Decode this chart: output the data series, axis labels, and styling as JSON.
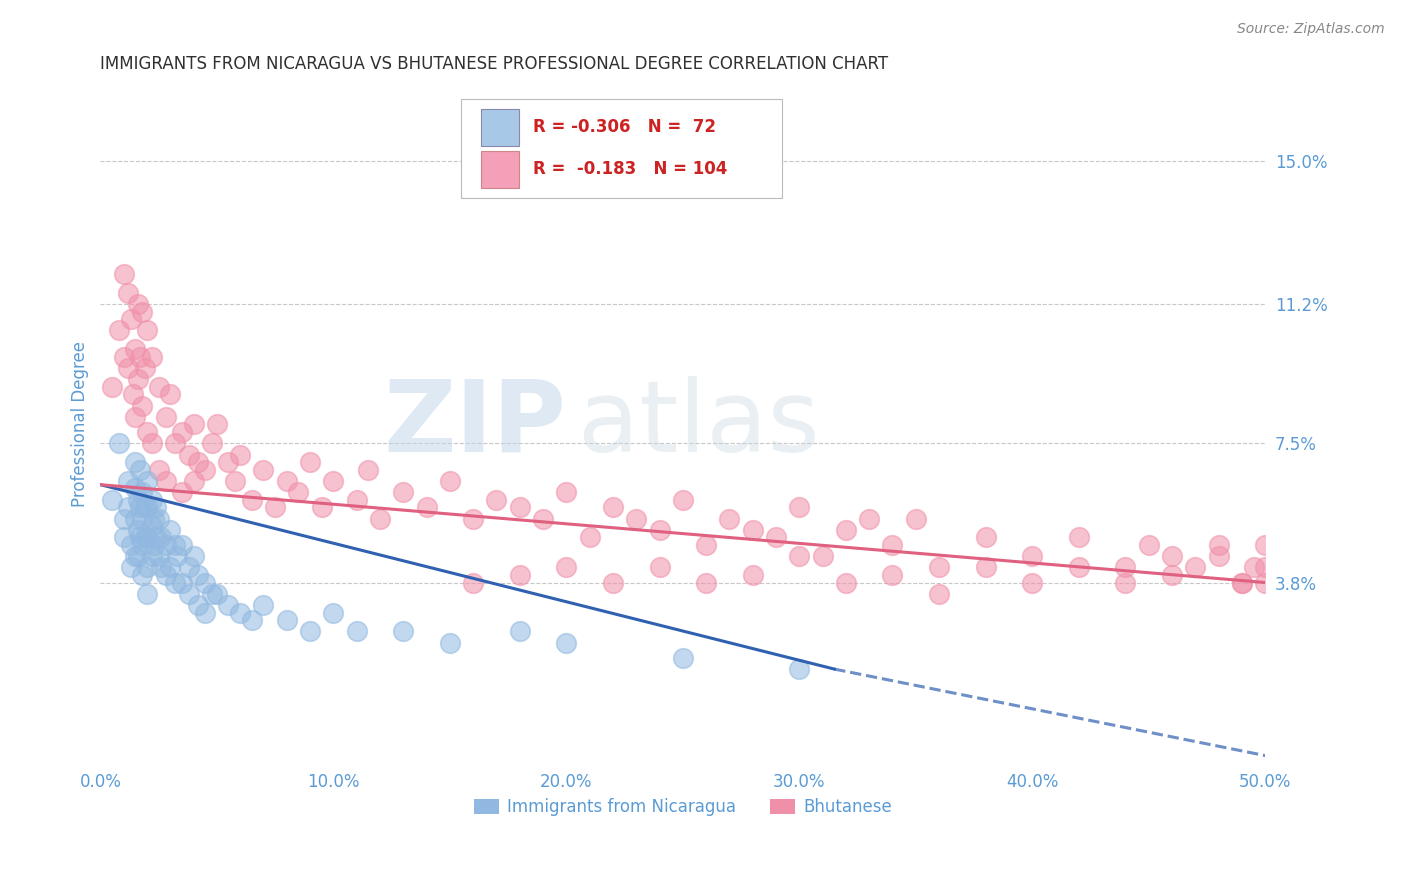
{
  "title": "IMMIGRANTS FROM NICARAGUA VS BHUTANESE PROFESSIONAL DEGREE CORRELATION CHART",
  "source": "Source: ZipAtlas.com",
  "ylabel": "Professional Degree",
  "xlim": [
    0,
    0.5
  ],
  "ylim": [
    -0.01,
    0.17
  ],
  "yticks": [
    0.038,
    0.075,
    0.112,
    0.15
  ],
  "ytick_labels": [
    "3.8%",
    "7.5%",
    "11.2%",
    "15.0%"
  ],
  "xticks": [
    0.0,
    0.1,
    0.2,
    0.3,
    0.4,
    0.5
  ],
  "xtick_labels": [
    "0.0%",
    "10.0%",
    "20.0%",
    "30.0%",
    "40.0%",
    "50.0%"
  ],
  "legend_entries": [
    {
      "label": "Immigrants from Nicaragua",
      "R": "-0.306",
      "N": " 72",
      "color": "#a8c8e8"
    },
    {
      "label": "Bhutanese",
      "R": " -0.183",
      "N": "104",
      "color": "#f4a0b8"
    }
  ],
  "nicaragua_color": "#90b8e0",
  "bhutanese_color": "#f090a8",
  "nicaragua_line_color": "#3060b0",
  "bhutanese_line_color": "#e06080",
  "watermark_zip": "ZIP",
  "watermark_atlas": "atlas",
  "title_color": "#303030",
  "tick_label_color": "#5b9bd5",
  "background_color": "#ffffff",
  "grid_color": "#c8c8c8",
  "nicaragua_scatter_x": [
    0.005,
    0.008,
    0.01,
    0.01,
    0.012,
    0.012,
    0.013,
    0.013,
    0.015,
    0.015,
    0.015,
    0.015,
    0.016,
    0.016,
    0.016,
    0.017,
    0.017,
    0.017,
    0.018,
    0.018,
    0.018,
    0.018,
    0.019,
    0.019,
    0.02,
    0.02,
    0.02,
    0.02,
    0.02,
    0.022,
    0.022,
    0.022,
    0.023,
    0.023,
    0.024,
    0.024,
    0.025,
    0.025,
    0.026,
    0.026,
    0.028,
    0.028,
    0.03,
    0.03,
    0.032,
    0.032,
    0.033,
    0.035,
    0.035,
    0.038,
    0.038,
    0.04,
    0.042,
    0.042,
    0.045,
    0.045,
    0.048,
    0.05,
    0.055,
    0.06,
    0.065,
    0.07,
    0.08,
    0.09,
    0.1,
    0.11,
    0.13,
    0.15,
    0.18,
    0.2,
    0.25,
    0.3
  ],
  "nicaragua_scatter_y": [
    0.06,
    0.075,
    0.055,
    0.05,
    0.065,
    0.058,
    0.048,
    0.042,
    0.07,
    0.063,
    0.055,
    0.045,
    0.06,
    0.052,
    0.045,
    0.068,
    0.058,
    0.05,
    0.062,
    0.055,
    0.048,
    0.04,
    0.058,
    0.05,
    0.065,
    0.058,
    0.05,
    0.042,
    0.035,
    0.06,
    0.053,
    0.045,
    0.055,
    0.048,
    0.058,
    0.05,
    0.055,
    0.045,
    0.05,
    0.042,
    0.048,
    0.04,
    0.052,
    0.042,
    0.048,
    0.038,
    0.045,
    0.048,
    0.038,
    0.042,
    0.035,
    0.045,
    0.04,
    0.032,
    0.038,
    0.03,
    0.035,
    0.035,
    0.032,
    0.03,
    0.028,
    0.032,
    0.028,
    0.025,
    0.03,
    0.025,
    0.025,
    0.022,
    0.025,
    0.022,
    0.018,
    0.015
  ],
  "bhutanese_scatter_x": [
    0.005,
    0.008,
    0.01,
    0.01,
    0.012,
    0.012,
    0.013,
    0.014,
    0.015,
    0.015,
    0.016,
    0.016,
    0.017,
    0.018,
    0.018,
    0.019,
    0.02,
    0.02,
    0.022,
    0.022,
    0.025,
    0.025,
    0.028,
    0.028,
    0.03,
    0.032,
    0.035,
    0.035,
    0.038,
    0.04,
    0.04,
    0.042,
    0.045,
    0.048,
    0.05,
    0.055,
    0.058,
    0.06,
    0.065,
    0.07,
    0.075,
    0.08,
    0.085,
    0.09,
    0.095,
    0.1,
    0.11,
    0.115,
    0.12,
    0.13,
    0.14,
    0.15,
    0.16,
    0.17,
    0.18,
    0.19,
    0.2,
    0.21,
    0.22,
    0.23,
    0.24,
    0.25,
    0.26,
    0.27,
    0.28,
    0.29,
    0.3,
    0.31,
    0.32,
    0.33,
    0.34,
    0.35,
    0.36,
    0.38,
    0.4,
    0.42,
    0.44,
    0.45,
    0.46,
    0.47,
    0.48,
    0.49,
    0.495,
    0.5,
    0.5,
    0.5,
    0.49,
    0.48,
    0.46,
    0.44,
    0.42,
    0.4,
    0.38,
    0.36,
    0.34,
    0.32,
    0.3,
    0.28,
    0.26,
    0.24,
    0.22,
    0.2,
    0.18,
    0.16
  ],
  "bhutanese_scatter_y": [
    0.09,
    0.105,
    0.12,
    0.098,
    0.115,
    0.095,
    0.108,
    0.088,
    0.1,
    0.082,
    0.112,
    0.092,
    0.098,
    0.11,
    0.085,
    0.095,
    0.105,
    0.078,
    0.098,
    0.075,
    0.09,
    0.068,
    0.082,
    0.065,
    0.088,
    0.075,
    0.078,
    0.062,
    0.072,
    0.08,
    0.065,
    0.07,
    0.068,
    0.075,
    0.08,
    0.07,
    0.065,
    0.072,
    0.06,
    0.068,
    0.058,
    0.065,
    0.062,
    0.07,
    0.058,
    0.065,
    0.06,
    0.068,
    0.055,
    0.062,
    0.058,
    0.065,
    0.055,
    0.06,
    0.058,
    0.055,
    0.062,
    0.05,
    0.058,
    0.055,
    0.052,
    0.06,
    0.048,
    0.055,
    0.052,
    0.05,
    0.058,
    0.045,
    0.052,
    0.055,
    0.048,
    0.055,
    0.042,
    0.05,
    0.045,
    0.05,
    0.042,
    0.048,
    0.045,
    0.042,
    0.048,
    0.038,
    0.042,
    0.048,
    0.038,
    0.042,
    0.038,
    0.045,
    0.04,
    0.038,
    0.042,
    0.038,
    0.042,
    0.035,
    0.04,
    0.038,
    0.045,
    0.04,
    0.038,
    0.042,
    0.038,
    0.042,
    0.04,
    0.038
  ],
  "nicaragua_trendline_solid": {
    "x": [
      0.0,
      0.315
    ],
    "y": [
      0.064,
      0.015
    ]
  },
  "nicaragua_trendline_dashed": {
    "x": [
      0.315,
      0.5
    ],
    "y": [
      0.015,
      -0.008
    ]
  },
  "bhutanese_trendline": {
    "x": [
      0.0,
      0.5
    ],
    "y": [
      0.064,
      0.038
    ]
  }
}
